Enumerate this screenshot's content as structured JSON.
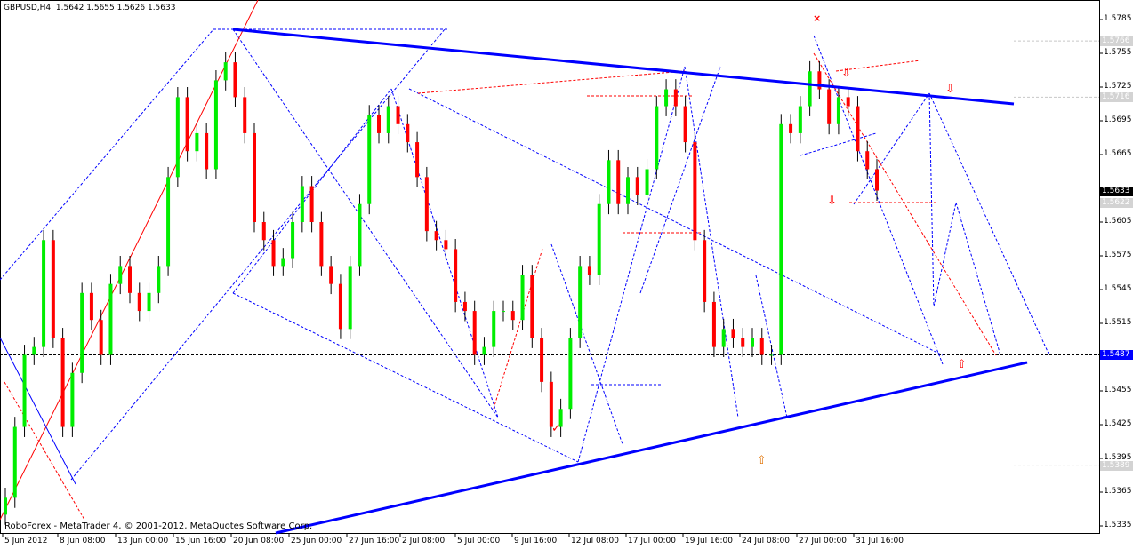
{
  "header": {
    "symbol": "GBPUSD,H4",
    "ohlc": "1.5642 1.5655 1.5626 1.5633"
  },
  "copyright": "RoboForex - MetaTrader 4, © 2001-2012, MetaQuotes Software Corp.",
  "colors": {
    "up": "#00ee00",
    "down": "#ff0000",
    "trend": "#0000ff",
    "background": "#ffffff"
  },
  "chart_data": {
    "type": "candlestick",
    "title": "GBPUSD,H4",
    "ylim": [
      1.532,
      1.58
    ],
    "y_ticks": [
      "1.5785",
      "1.5755",
      "1.5725",
      "1.5695",
      "1.5665",
      "1.5605",
      "1.5575",
      "1.5545",
      "1.5515",
      "1.5455",
      "1.5425",
      "1.5395",
      "1.5365",
      "1.5335"
    ],
    "x_ticks": [
      "5 Jun 2012",
      "8 Jun 08:00",
      "13 Jun 00:00",
      "15 Jun 16:00",
      "20 Jun 08:00",
      "25 Jun 00:00",
      "27 Jun 16:00",
      "2 Jul 08:00",
      "5 Jul 00:00",
      "9 Jul 16:00",
      "12 Jul 08:00",
      "17 Jul 00:00",
      "19 Jul 16:00",
      "24 Jul 08:00",
      "27 Jul 00:00",
      "31 Jul 16:00"
    ],
    "price_tags": [
      {
        "label": "1.5766",
        "value": 1.5766,
        "style": "level"
      },
      {
        "label": "1.5716",
        "value": 1.5716,
        "style": "level"
      },
      {
        "label": "1.5633",
        "value": 1.5633,
        "style": "current"
      },
      {
        "label": "1.5622",
        "value": 1.5622,
        "style": "level"
      },
      {
        "label": "1.5487",
        "value": 1.5487,
        "style": "hline"
      },
      {
        "label": "1.5389",
        "value": 1.5389,
        "style": "level"
      }
    ],
    "closes": [
      1.536,
      1.5423,
      1.5487,
      1.5494,
      1.5589,
      1.5502,
      1.5423,
      1.5471,
      1.5542,
      1.5518,
      1.5487,
      1.555,
      1.5566,
      1.5542,
      1.5526,
      1.5542,
      1.5566,
      1.5645,
      1.5716,
      1.5668,
      1.5684,
      1.5652,
      1.5731,
      1.5747,
      1.5716,
      1.5684,
      1.5605,
      1.5589,
      1.5566,
      1.5573,
      1.5605,
      1.5637,
      1.5605,
      1.5566,
      1.555,
      1.551,
      1.5566,
      1.5621,
      1.57,
      1.5684,
      1.5708,
      1.5692,
      1.5676,
      1.5645,
      1.5597,
      1.5589,
      1.5581,
      1.5534,
      1.5526,
      1.5487,
      1.5494,
      1.5526,
      1.5526,
      1.5518,
      1.5558,
      1.5502,
      1.5463,
      1.5423,
      1.5439,
      1.5502,
      1.5566,
      1.5558,
      1.5621,
      1.566,
      1.5621,
      1.5645,
      1.5629,
      1.5652,
      1.5708,
      1.5723,
      1.5708,
      1.5676,
      1.5589,
      1.5534,
      1.5494,
      1.551,
      1.5502,
      1.5494,
      1.5502,
      1.5487,
      1.5487,
      1.5692,
      1.5684,
      1.5708,
      1.5739,
      1.5723,
      1.5692,
      1.5716,
      1.5708,
      1.5668,
      1.5652,
      1.5633
    ]
  }
}
